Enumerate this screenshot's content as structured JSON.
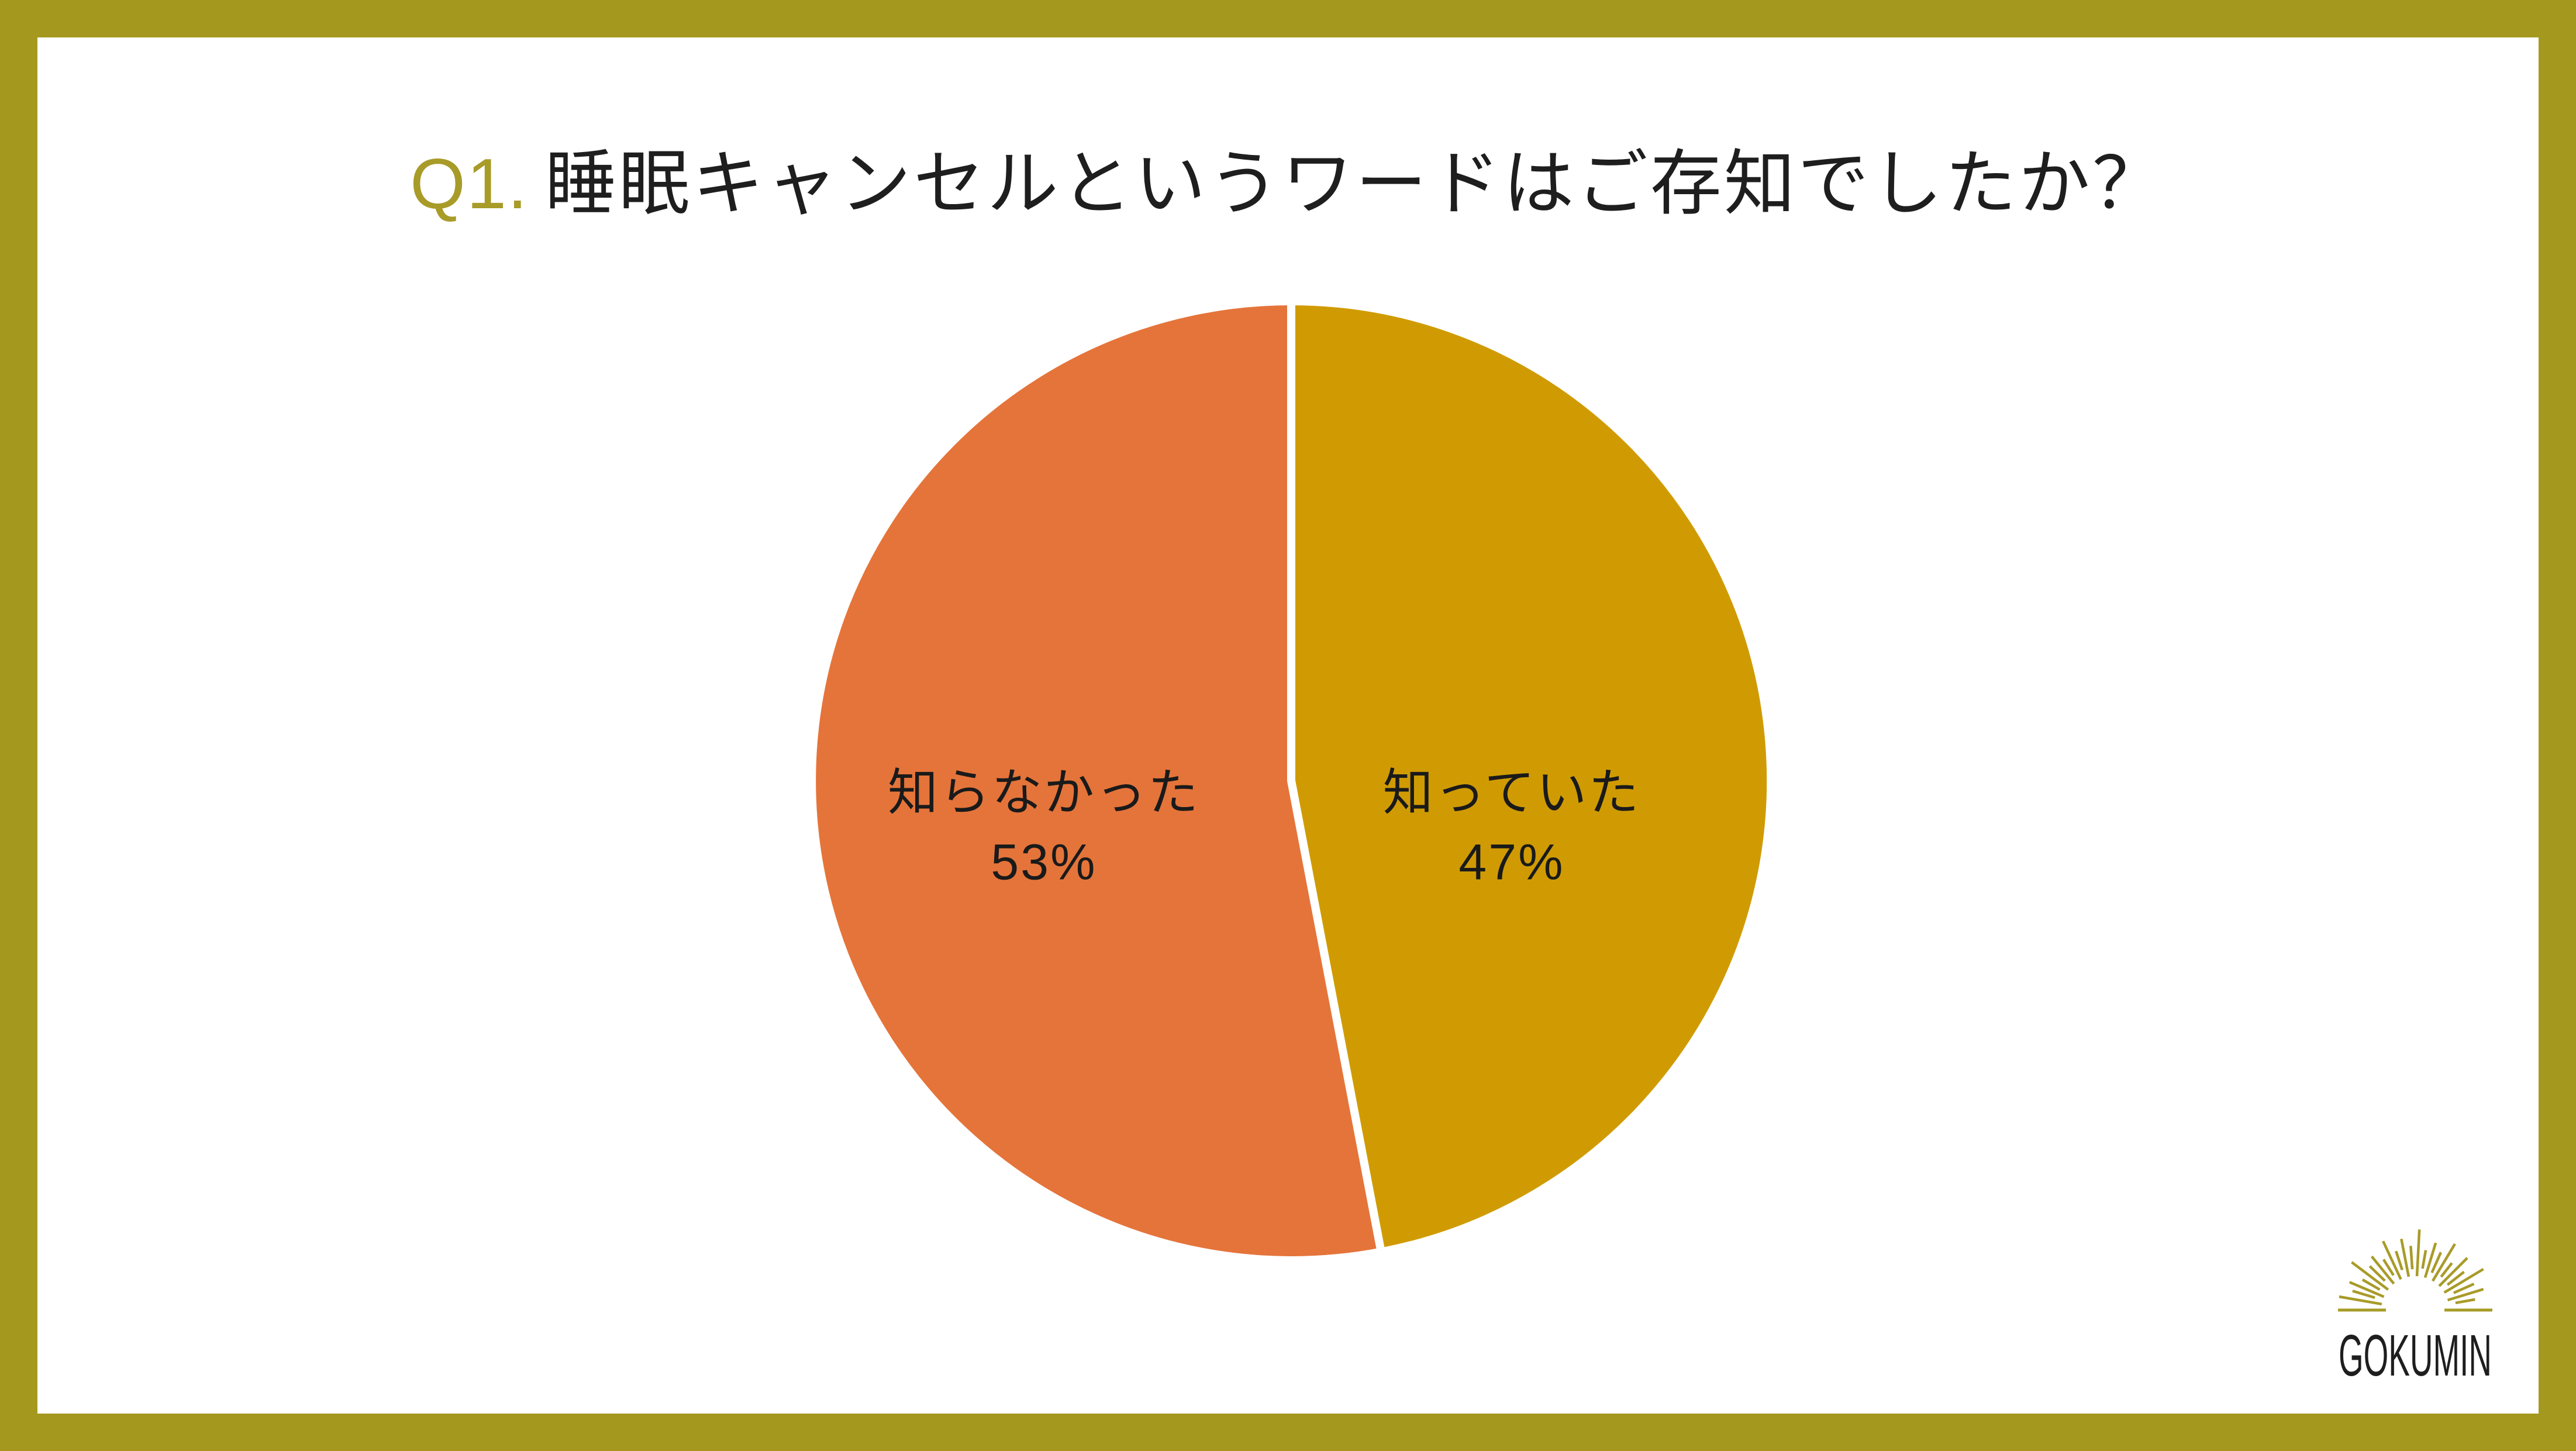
{
  "page": {
    "background_color": "#FFFFFF",
    "frame_color": "#A4981F"
  },
  "title": {
    "prefix": "Q1.",
    "prefix_color": "#A89B28",
    "text": "睡眠キャンセルというワードはご存知でしたか？",
    "text_color": "#1E1E1E"
  },
  "chart_data": {
    "type": "pie",
    "title": "Q1. 睡眠キャンセルというワードはご存知でしたか？",
    "start_angle_deg": 0,
    "direction": "clockwise",
    "divider_color": "#FFFFFF",
    "slices": [
      {
        "label": "知っていた",
        "pct_label": "47%",
        "value": 47,
        "color": "#D09B02",
        "position": "right"
      },
      {
        "label": "知らなかった",
        "pct_label": "53%",
        "value": 53,
        "color": "#E5743A",
        "position": "left"
      }
    ]
  },
  "logo": {
    "text": "GOKUMIN",
    "icon": "sunburst-icon",
    "accent_color": "#A89B28",
    "text_color": "#1E1E1E"
  }
}
